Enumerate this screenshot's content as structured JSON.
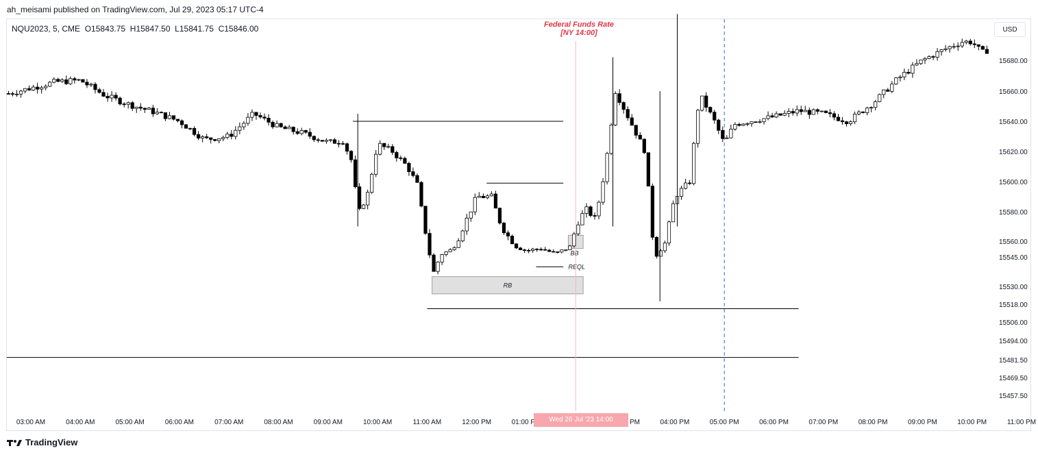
{
  "header": {
    "published_by": "ah_meisami published on TradingView.com, Jul 29, 2023 05:17 UTC-4"
  },
  "legend": {
    "symbol": "NQU2023, 5, CME",
    "open": "O15843.75",
    "high": "H15847.50",
    "low": "L15841.75",
    "close": "C15846.00"
  },
  "currency": "USD",
  "footer": {
    "brand": "TradingView"
  },
  "event": {
    "title": "Federal Funds Rate",
    "subtitle": "[NY 14:00]",
    "time_label": "Wed 26 Jul '23 14:00"
  },
  "annotations": {
    "rb_label": "RB",
    "bb_label": "BB",
    "reql_label": "REQL"
  },
  "colors": {
    "up_body": "#ffffff",
    "down_body": "#000000",
    "wick": "#000000",
    "event_line": "#f7b6bd",
    "event_text": "#e0374a",
    "session_line": "#2962ff",
    "box_fill": "#e0e0e0"
  },
  "chart_data": {
    "type": "candlestick",
    "x_axis": {
      "tick_labels": [
        "03:00 AM",
        "04:00 AM",
        "05:00 AM",
        "06:00 AM",
        "07:00 AM",
        "08:00 AM",
        "09:00 AM",
        "10:00 AM",
        "11:00 AM",
        "12:00 PM",
        "01:00 PM",
        "02:00 PM",
        "03:00 PM",
        "04:00 PM",
        "05:00 PM",
        "06:00 PM",
        "07:00 PM",
        "08:00 PM",
        "09:00 PM",
        "10:00 PM",
        "11:00 PM"
      ]
    },
    "y_axis": {
      "tick_labels": [
        "15680.00",
        "15660.00",
        "15640.00",
        "15620.00",
        "15600.00",
        "15580.00",
        "15560.00",
        "15545.00",
        "15530.00",
        "15518.00",
        "15506.00",
        "15494.00",
        "15481.50",
        "15469.50",
        "15457.50"
      ]
    },
    "series": [
      {
        "close_path": [
          [
            2.5,
            15658
          ],
          [
            3.0,
            15662
          ],
          [
            3.5,
            15666
          ],
          [
            4.0,
            15667
          ],
          [
            4.5,
            15657
          ],
          [
            5.0,
            15651
          ],
          [
            5.5,
            15646
          ],
          [
            6.0,
            15640
          ],
          [
            6.5,
            15628
          ],
          [
            7.0,
            15630
          ],
          [
            7.5,
            15645
          ],
          [
            8.0,
            15636
          ],
          [
            8.5,
            15632
          ],
          [
            9.0,
            15626
          ],
          [
            9.3,
            15627
          ],
          [
            9.5,
            15612
          ],
          [
            9.6,
            15578
          ],
          [
            9.8,
            15592
          ],
          [
            10.0,
            15625
          ],
          [
            10.3,
            15620
          ],
          [
            10.6,
            15610
          ],
          [
            10.8,
            15598
          ],
          [
            11.0,
            15560
          ],
          [
            11.1,
            15535
          ],
          [
            11.3,
            15548
          ],
          [
            11.5,
            15552
          ],
          [
            11.8,
            15575
          ],
          [
            12.0,
            15590
          ],
          [
            12.3,
            15590
          ],
          [
            12.5,
            15570
          ],
          [
            12.8,
            15555
          ],
          [
            13.0,
            15551
          ],
          [
            13.3,
            15553
          ],
          [
            13.6,
            15548
          ],
          [
            13.9,
            15555
          ],
          [
            14.0,
            15570
          ],
          [
            14.2,
            15582
          ],
          [
            14.4,
            15575
          ],
          [
            14.6,
            15610
          ],
          [
            14.8,
            15660
          ],
          [
            15.1,
            15640
          ],
          [
            15.4,
            15620
          ],
          [
            15.6,
            15545
          ],
          [
            15.8,
            15558
          ],
          [
            16.0,
            15590
          ],
          [
            16.3,
            15600
          ],
          [
            16.5,
            15658
          ],
          [
            16.8,
            15640
          ],
          [
            17.0,
            15625
          ],
          [
            17.2,
            15638
          ],
          [
            17.5,
            15640
          ],
          [
            18.0,
            15643
          ],
          [
            18.5,
            15647
          ],
          [
            19.0,
            15645
          ],
          [
            19.5,
            15640
          ],
          [
            20.0,
            15652
          ],
          [
            20.5,
            15668
          ],
          [
            21.0,
            15680
          ],
          [
            21.5,
            15688
          ],
          [
            21.8,
            15692
          ],
          [
            22.0,
            15692
          ],
          [
            22.2,
            15685
          ],
          [
            22.5,
            15689
          ],
          [
            22.8,
            15697
          ],
          [
            23.1,
            15695
          ]
        ]
      }
    ],
    "levels": [
      {
        "price": 15640,
        "from_hour": 9.5,
        "to_hour": 13.75
      },
      {
        "price": 15599,
        "from_hour": 12.2,
        "to_hour": 13.75
      },
      {
        "price": 15515,
        "from_hour": 11.0,
        "to_hour": 18.5
      },
      {
        "price": 15483,
        "from_hour": 2.0,
        "to_hour": 18.5
      },
      {
        "price": 15540,
        "from_hour": 13.2,
        "to_hour": 13.75
      }
    ],
    "zones": [
      {
        "label": "RB",
        "from_hour": 11.1,
        "to_hour": 14.15,
        "top": 15535,
        "bottom": 15525
      },
      {
        "label": "BB",
        "from_hour": 13.85,
        "to_hour": 14.15,
        "top": 15564,
        "bottom": 15553
      }
    ],
    "event_hour": 14.0,
    "session_divider_hour": 17.0
  }
}
